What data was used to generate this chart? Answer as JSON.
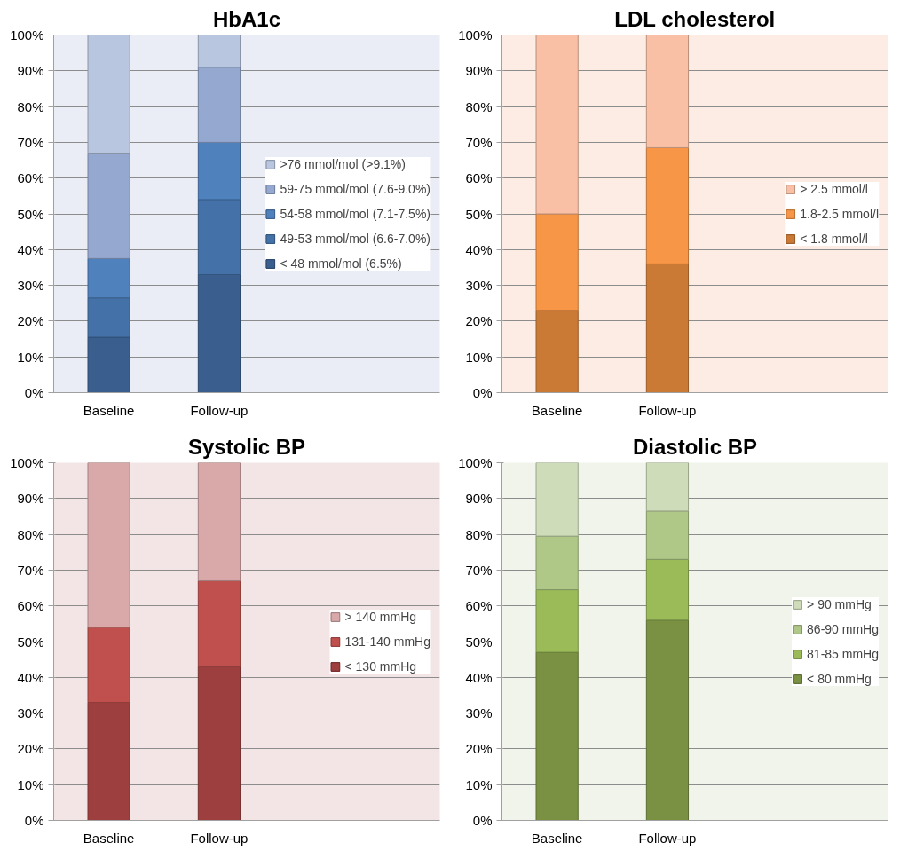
{
  "chart_data": [
    {
      "type": "bar",
      "title": "HbA1c",
      "categories": [
        "Baseline",
        "Follow-up"
      ],
      "stacked": true,
      "legend": "right",
      "grid": "y",
      "ylim": [
        0,
        100
      ],
      "yticks": [
        {
          "value": 0,
          "label": "0%"
        },
        {
          "value": 10,
          "label": "10%"
        },
        {
          "value": 20,
          "label": "20%"
        },
        {
          "value": 30,
          "label": "30%"
        },
        {
          "value": 40,
          "label": "40%"
        },
        {
          "value": 50,
          "label": "50%"
        },
        {
          "value": 60,
          "label": "60%"
        },
        {
          "value": 70,
          "label": "70%"
        },
        {
          "value": 80,
          "label": "80%"
        },
        {
          "value": 90,
          "label": "90%"
        },
        {
          "value": 100,
          "label": "100%"
        }
      ],
      "series": [
        {
          "name": "< 48 mmol/mol (6.5%)",
          "color": "#3a5f8f",
          "values": [
            15.5,
            33
          ]
        },
        {
          "name": "49-53 mmol/mol (6.6-7.0%)",
          "color": "#4472a8",
          "values": [
            11,
            21
          ]
        },
        {
          "name": "54-58 mmol/mol (7.1-7.5%)",
          "color": "#4f81bd",
          "values": [
            11,
            16
          ]
        },
        {
          "name": "59-75 mmol/mol (7.6-9.0%)",
          "color": "#95a9d0",
          "values": [
            29.5,
            21
          ]
        },
        {
          "name": ">76 mmol/mol (>9.1%)",
          "color": "#b9c6e0",
          "values": [
            33,
            9
          ]
        }
      ]
    },
    {
      "type": "bar",
      "title": "LDL cholesterol",
      "categories": [
        "Baseline",
        "Follow-up"
      ],
      "stacked": true,
      "legend": "right",
      "grid": "y",
      "ylim": [
        0,
        100
      ],
      "yticks": [
        {
          "value": 0,
          "label": "0%"
        },
        {
          "value": 10,
          "label": "10%"
        },
        {
          "value": 20,
          "label": "20%"
        },
        {
          "value": 30,
          "label": "30%"
        },
        {
          "value": 40,
          "label": "40%"
        },
        {
          "value": 50,
          "label": "50%"
        },
        {
          "value": 60,
          "label": "60%"
        },
        {
          "value": 70,
          "label": "70%"
        },
        {
          "value": 80,
          "label": "80%"
        },
        {
          "value": 90,
          "label": "90%"
        },
        {
          "value": 100,
          "label": "100%"
        }
      ],
      "series": [
        {
          "name": "< 1.8 mmol/l",
          "color": "#cb7a36",
          "values": [
            23,
            36
          ]
        },
        {
          "name": "1.8-2.5 mmol/l",
          "color": "#f79646",
          "values": [
            27,
            32.5
          ]
        },
        {
          "name": "> 2.5 mmol/l",
          "color": "#f9c0a5",
          "values": [
            50,
            31.5
          ]
        }
      ]
    },
    {
      "type": "bar",
      "title": "Systolic BP",
      "categories": [
        "Baseline",
        "Follow-up"
      ],
      "stacked": true,
      "legend": "right",
      "grid": "y",
      "ylim": [
        0,
        100
      ],
      "yticks": [
        {
          "value": 0,
          "label": "0%"
        },
        {
          "value": 10,
          "label": "10%"
        },
        {
          "value": 20,
          "label": "20%"
        },
        {
          "value": 30,
          "label": "30%"
        },
        {
          "value": 40,
          "label": "40%"
        },
        {
          "value": 50,
          "label": "50%"
        },
        {
          "value": 60,
          "label": "60%"
        },
        {
          "value": 70,
          "label": "70%"
        },
        {
          "value": 80,
          "label": "80%"
        },
        {
          "value": 90,
          "label": "90%"
        },
        {
          "value": 100,
          "label": "100%"
        }
      ],
      "series": [
        {
          "name": "< 130 mmHg",
          "color": "#9c3f3e",
          "values": [
            33,
            43
          ]
        },
        {
          "name": "131-140 mmHg",
          "color": "#c0504d",
          "values": [
            21,
            24
          ]
        },
        {
          "name": "> 140 mmHg",
          "color": "#d9a9a9",
          "values": [
            46,
            33
          ]
        }
      ]
    },
    {
      "type": "bar",
      "title": "Diastolic BP",
      "categories": [
        "Baseline",
        "Follow-up"
      ],
      "stacked": true,
      "legend": "right",
      "grid": "y",
      "ylim": [
        0,
        100
      ],
      "yticks": [
        {
          "value": 0,
          "label": "0%"
        },
        {
          "value": 10,
          "label": "10%"
        },
        {
          "value": 20,
          "label": "20%"
        },
        {
          "value": 30,
          "label": "30%"
        },
        {
          "value": 40,
          "label": "40%"
        },
        {
          "value": 50,
          "label": "50%"
        },
        {
          "value": 60,
          "label": "60%"
        },
        {
          "value": 70,
          "label": "70%"
        },
        {
          "value": 80,
          "label": "80%"
        },
        {
          "value": 90,
          "label": "90%"
        },
        {
          "value": 100,
          "label": "100%"
        }
      ],
      "series": [
        {
          "name": "< 80 mmHg",
          "color": "#7a9143",
          "values": [
            47,
            56
          ]
        },
        {
          "name": "81-85 mmHg",
          "color": "#9bbb59",
          "values": [
            17.5,
            17
          ]
        },
        {
          "name": "86-90 mmHg",
          "color": "#afc887",
          "values": [
            15,
            13.5
          ]
        },
        {
          "name": "> 90 mmHg",
          "color": "#cfdcb9",
          "values": [
            20.5,
            13.5
          ]
        }
      ]
    }
  ]
}
